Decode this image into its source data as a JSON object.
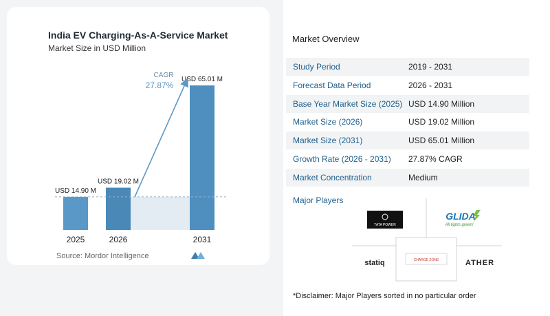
{
  "chart_data": {
    "type": "bar",
    "title": "India EV Charging-As-A-Service Market",
    "subtitle": "Market Size in USD Million",
    "categories": [
      "2025",
      "2026",
      "2031"
    ],
    "values": [
      14.9,
      19.02,
      65.01
    ],
    "data_labels": [
      "USD 14.90 M",
      "USD 19.02 M",
      "USD 65.01 M"
    ],
    "cagr_label": "CAGR",
    "cagr_value": "27.87%",
    "bar_colors": [
      "#5a98c8",
      "#4a88b8",
      "#4f8fbf"
    ],
    "ylim": [
      0,
      70
    ],
    "grid": false,
    "legend": "none"
  },
  "source": "Source:  Mordor Intelligence",
  "overview": {
    "title": "Market Overview",
    "rows": [
      {
        "label": "Study Period",
        "value": "2019 - 2031"
      },
      {
        "label": "Forecast Data Period",
        "value": "2026 - 2031"
      },
      {
        "label": "Base Year Market Size (2025)",
        "value": "USD 14.90 Million"
      },
      {
        "label": "Market Size (2026)",
        "value": "USD 19.02 Million"
      },
      {
        "label": "Market Size (2031)",
        "value": "USD 65.01 Million"
      },
      {
        "label": "Growth Rate (2026 - 2031)",
        "value": "27.87% CAGR"
      },
      {
        "label": "Market Concentration",
        "value": "Medium"
      }
    ]
  },
  "players": {
    "title": "Major Players",
    "logos": [
      "TATA POWER",
      "GLIDA",
      "All lights green!",
      "statiq",
      "CHARGE ZONE",
      "ATHER"
    ]
  },
  "disclaimer": "*Disclaimer: Major Players sorted in no particular order"
}
